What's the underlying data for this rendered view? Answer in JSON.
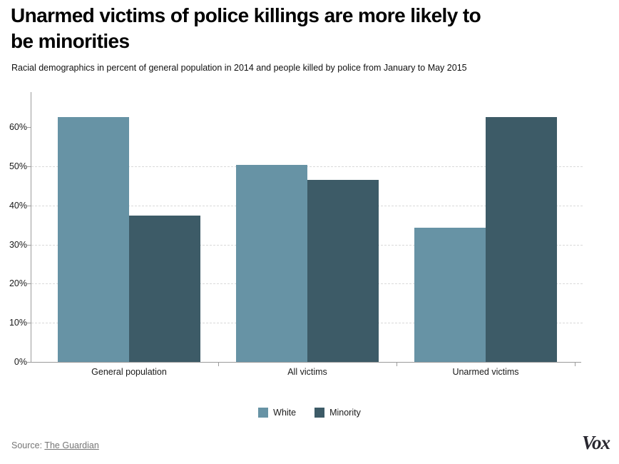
{
  "header": {
    "title": "Unarmed victims of police killings are more likely to be minorities",
    "subtitle": "Racial demographics in percent of general population in 2014 and people killed by police from January to May 2015"
  },
  "chart_data": {
    "type": "bar",
    "title": "Unarmed victims of police killings are more likely to be minorities",
    "subtitle": "Racial demographics in percent of general population in 2014 and people killed by police from January to May 2015",
    "categories": [
      "General population",
      "All victims",
      "Unarmed victims"
    ],
    "series": [
      {
        "name": "White",
        "color": "#6793a5",
        "values": [
          62.6,
          50.4,
          34.4
        ]
      },
      {
        "name": "Minority",
        "color": "#3d5b67",
        "values": [
          37.4,
          46.6,
          62.6
        ]
      }
    ],
    "xlabel": "",
    "ylabel": "",
    "unit": "percent of group",
    "ylim": [
      0,
      69
    ],
    "yticks": [
      {
        "value": 0,
        "label": "0%"
      },
      {
        "value": 10,
        "label": "10%"
      },
      {
        "value": 20,
        "label": "20%"
      },
      {
        "value": 30,
        "label": "30%"
      },
      {
        "value": 40,
        "label": "40%"
      },
      {
        "value": 50,
        "label": "50%"
      },
      {
        "value": 60,
        "label": "60%"
      }
    ],
    "gridlines_at": [
      10,
      20,
      30,
      40,
      50
    ],
    "grid_style": "dashed",
    "legend_position": "bottom-center"
  },
  "footer": {
    "source_label": "Source:",
    "source_link_text": "The Guardian",
    "brand": "Vox"
  },
  "colors": {
    "series_white": "#6793a5",
    "series_minority": "#3d5b67",
    "grid": "#d9d9d9",
    "axis": "#9b9b9b",
    "title_text": "#000000",
    "tick_text": "#1a1a1a",
    "source_text": "#767676",
    "brand_text": "#28272f"
  }
}
